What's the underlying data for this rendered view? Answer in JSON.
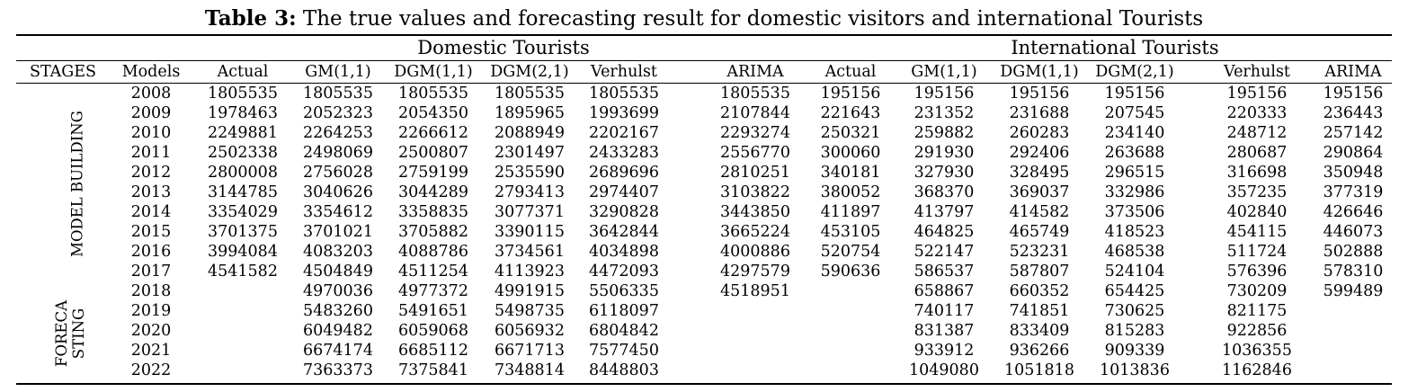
{
  "title": {
    "label": "Table 3:",
    "text": " The true values and forecasting result for domestic visitors and international Tourists"
  },
  "groups": {
    "domestic": "Domestic Tourists",
    "international": "International Tourists"
  },
  "headers": [
    "STAGES",
    "Models",
    "Actual",
    "GM(1,1)",
    "DGM(1,1)",
    "DGM(2,1)",
    "Verhulst",
    "ARIMA",
    "Actual",
    "GM(1,1)",
    "DGM(1,1)",
    "DGM(2,1)",
    "Verhulst",
    "ARIMA"
  ],
  "stages": {
    "model_building": "MODEL BUILDING",
    "forecasting_line1": "FORECA",
    "forecasting_line2": "STING"
  },
  "rows": [
    [
      "2008",
      "1805535",
      "1805535",
      "1805535",
      "1805535",
      "1805535",
      "1805535",
      "195156",
      "195156",
      "195156",
      "195156",
      "195156",
      "195156"
    ],
    [
      "2009",
      "1978463",
      "2052323",
      "2054350",
      "1895965",
      "1993699",
      "2107844",
      "221643",
      "231352",
      "231688",
      "207545",
      "220333",
      "236443"
    ],
    [
      "2010",
      "2249881",
      "2264253",
      "2266612",
      "2088949",
      "2202167",
      "2293274",
      "250321",
      "259882",
      "260283",
      "234140",
      "248712",
      "257142"
    ],
    [
      "2011",
      "2502338",
      "2498069",
      "2500807",
      "2301497",
      "2433283",
      "2556770",
      "300060",
      "291930",
      "292406",
      "263688",
      "280687",
      "290864"
    ],
    [
      "2012",
      "2800008",
      "2756028",
      "2759199",
      "2535590",
      "2689696",
      "2810251",
      "340181",
      "327930",
      "328495",
      "296515",
      "316698",
      "350948"
    ],
    [
      "2013",
      "3144785",
      "3040626",
      "3044289",
      "2793413",
      "2974407",
      "3103822",
      "380052",
      "368370",
      "369037",
      "332986",
      "357235",
      "377319"
    ],
    [
      "2014",
      "3354029",
      "3354612",
      "3358835",
      "3077371",
      "3290828",
      "3443850",
      "411897",
      "413797",
      "414582",
      "373506",
      "402840",
      "426646"
    ],
    [
      "2015",
      "3701375",
      "3701021",
      "3705882",
      "3390115",
      "3642844",
      "3665224",
      "453105",
      "464825",
      "465749",
      "418523",
      "454115",
      "446073"
    ],
    [
      "2016",
      "3994084",
      "4083203",
      "4088786",
      "3734561",
      "4034898",
      "4000886",
      "520754",
      "522147",
      "523231",
      "468538",
      "511724",
      "502888"
    ],
    [
      "2017",
      "4541582",
      "4504849",
      "4511254",
      "4113923",
      "4472093",
      "4297579",
      "590636",
      "586537",
      "587807",
      "524104",
      "576396",
      "578310"
    ],
    [
      "2018",
      "",
      "4970036",
      "4977372",
      "4991915",
      "5506335",
      "4518951",
      "",
      "658867",
      "660352",
      "654425",
      "730209",
      "599489"
    ],
    [
      "2019",
      "",
      "5483260",
      "5491651",
      "5498735",
      "6118097",
      "",
      "",
      "740117",
      "741851",
      "730625",
      "821175",
      ""
    ],
    [
      "2020",
      "",
      "6049482",
      "6059068",
      "6056932",
      "6804842",
      "",
      "",
      "831387",
      "833409",
      "815283",
      "922856",
      ""
    ],
    [
      "2021",
      "",
      "6674174",
      "6685112",
      "6671713",
      "7577450",
      "",
      "",
      "933912",
      "936266",
      "909339",
      "1036355",
      ""
    ],
    [
      "2022",
      "",
      "7363373",
      "7375841",
      "7348814",
      "8448803",
      "",
      "",
      "1049080",
      "1051818",
      "1013836",
      "1162846",
      ""
    ]
  ]
}
